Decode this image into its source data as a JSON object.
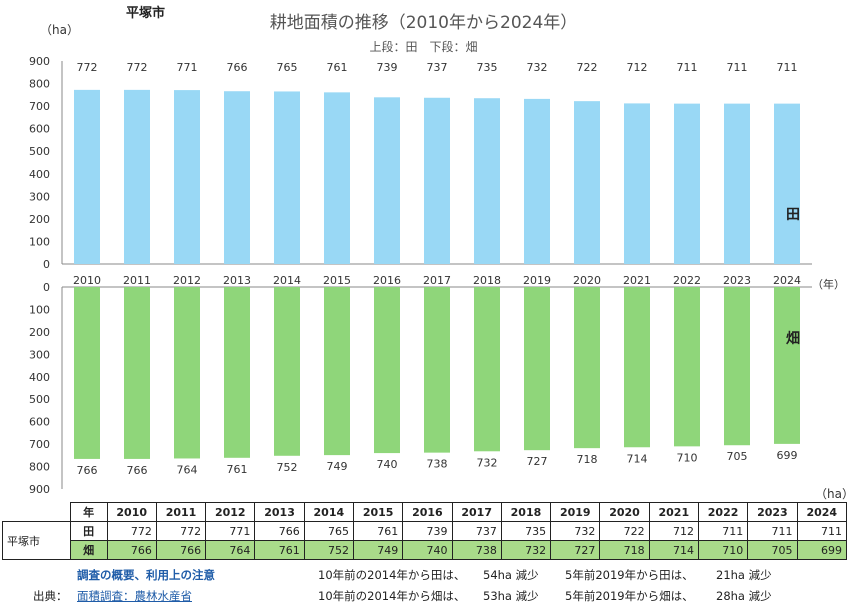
{
  "header": {
    "city": "平塚市",
    "title": "耕地面積の推移（2010年から2024年）",
    "subtitle": "上段：田　下段：畑",
    "y_unit_top": "（ha）",
    "x_unit": "（年）",
    "y_unit_bottom": "（ha）",
    "tag_ta": "田",
    "tag_hata": "畑"
  },
  "chart_data": [
    {
      "type": "bar",
      "series": [
        {
          "name": "田",
          "values": [
            772,
            772,
            771,
            766,
            765,
            761,
            739,
            737,
            735,
            732,
            722,
            712,
            711,
            711,
            711
          ]
        }
      ],
      "categories": [
        "2010",
        "2011",
        "2012",
        "2013",
        "2014",
        "2015",
        "2016",
        "2017",
        "2018",
        "2019",
        "2020",
        "2021",
        "2022",
        "2023",
        "2024"
      ],
      "ylim": [
        0,
        900
      ],
      "yticks": [
        0,
        100,
        200,
        300,
        400,
        500,
        600,
        700,
        800,
        900
      ],
      "color": "#99d8f5",
      "grid": false
    },
    {
      "type": "bar",
      "series": [
        {
          "name": "畑",
          "values": [
            766,
            766,
            764,
            761,
            752,
            749,
            740,
            738,
            732,
            727,
            718,
            714,
            710,
            705,
            699
          ]
        }
      ],
      "categories": [
        "2010",
        "2011",
        "2012",
        "2013",
        "2014",
        "2015",
        "2016",
        "2017",
        "2018",
        "2019",
        "2020",
        "2021",
        "2022",
        "2023",
        "2024"
      ],
      "ylim": [
        0,
        900
      ],
      "yticks": [
        0,
        100,
        200,
        300,
        400,
        500,
        600,
        700,
        800,
        900
      ],
      "inverted": true,
      "color": "#8fd67a",
      "grid": false
    }
  ],
  "table": {
    "city": "平塚市",
    "year_header": "年",
    "years": [
      "2010",
      "2011",
      "2012",
      "2013",
      "2014",
      "2015",
      "2016",
      "2017",
      "2018",
      "2019",
      "2020",
      "2021",
      "2022",
      "2023",
      "2024"
    ],
    "row_ta_label": "田",
    "row_ta": [
      772,
      772,
      771,
      766,
      765,
      761,
      739,
      737,
      735,
      732,
      722,
      712,
      711,
      711,
      711
    ],
    "row_hata_label": "畑",
    "row_hata": [
      766,
      766,
      764,
      761,
      752,
      749,
      740,
      738,
      732,
      727,
      718,
      714,
      710,
      705,
      699
    ]
  },
  "footer": {
    "notes_link": "調査の概要、利用上の注意",
    "source_label": "出典：",
    "source_link": "面積調査：農林水産省",
    "ta_10y": "10年前の2014年から田は、",
    "ta_10y_val": "54ha 減少",
    "ta_5y": "5年前2019年から田は、",
    "ta_5y_val": "21ha 減少",
    "hata_10y": "10年前の2014年から畑は、",
    "hata_10y_val": "53ha 減少",
    "hata_5y": "5年前2019年から畑は、",
    "hata_5y_val": "28ha 減少"
  }
}
